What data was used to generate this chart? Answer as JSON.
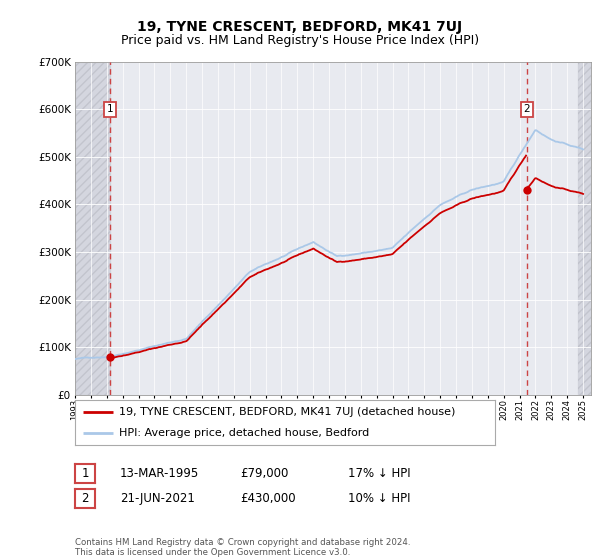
{
  "title": "19, TYNE CRESCENT, BEDFORD, MK41 7UJ",
  "subtitle": "Price paid vs. HM Land Registry's House Price Index (HPI)",
  "ylim": [
    0,
    700000
  ],
  "yticks": [
    0,
    100000,
    200000,
    300000,
    400000,
    500000,
    600000,
    700000
  ],
  "ytick_labels": [
    "£0",
    "£100K",
    "£200K",
    "£300K",
    "£400K",
    "£500K",
    "£600K",
    "£700K"
  ],
  "background_color": "#ffffff",
  "plot_bg_color": "#e8eaf0",
  "sale1_date": 1995.19,
  "sale1_price": 79000,
  "sale2_date": 2021.47,
  "sale2_price": 430000,
  "legend_entry1": "19, TYNE CRESCENT, BEDFORD, MK41 7UJ (detached house)",
  "legend_entry2": "HPI: Average price, detached house, Bedford",
  "table_row1": [
    "1",
    "13-MAR-1995",
    "£79,000",
    "17% ↓ HPI"
  ],
  "table_row2": [
    "2",
    "21-JUN-2021",
    "£430,000",
    "10% ↓ HPI"
  ],
  "footer": "Contains HM Land Registry data © Crown copyright and database right 2024.\nThis data is licensed under the Open Government Licence v3.0.",
  "hpi_color": "#aac8e8",
  "price_color": "#cc0000",
  "dashed_line_color": "#cc4444",
  "marker_color": "#cc0000",
  "title_fontsize": 10,
  "subtitle_fontsize": 9,
  "tick_fontsize": 7.5,
  "legend_fontsize": 8
}
